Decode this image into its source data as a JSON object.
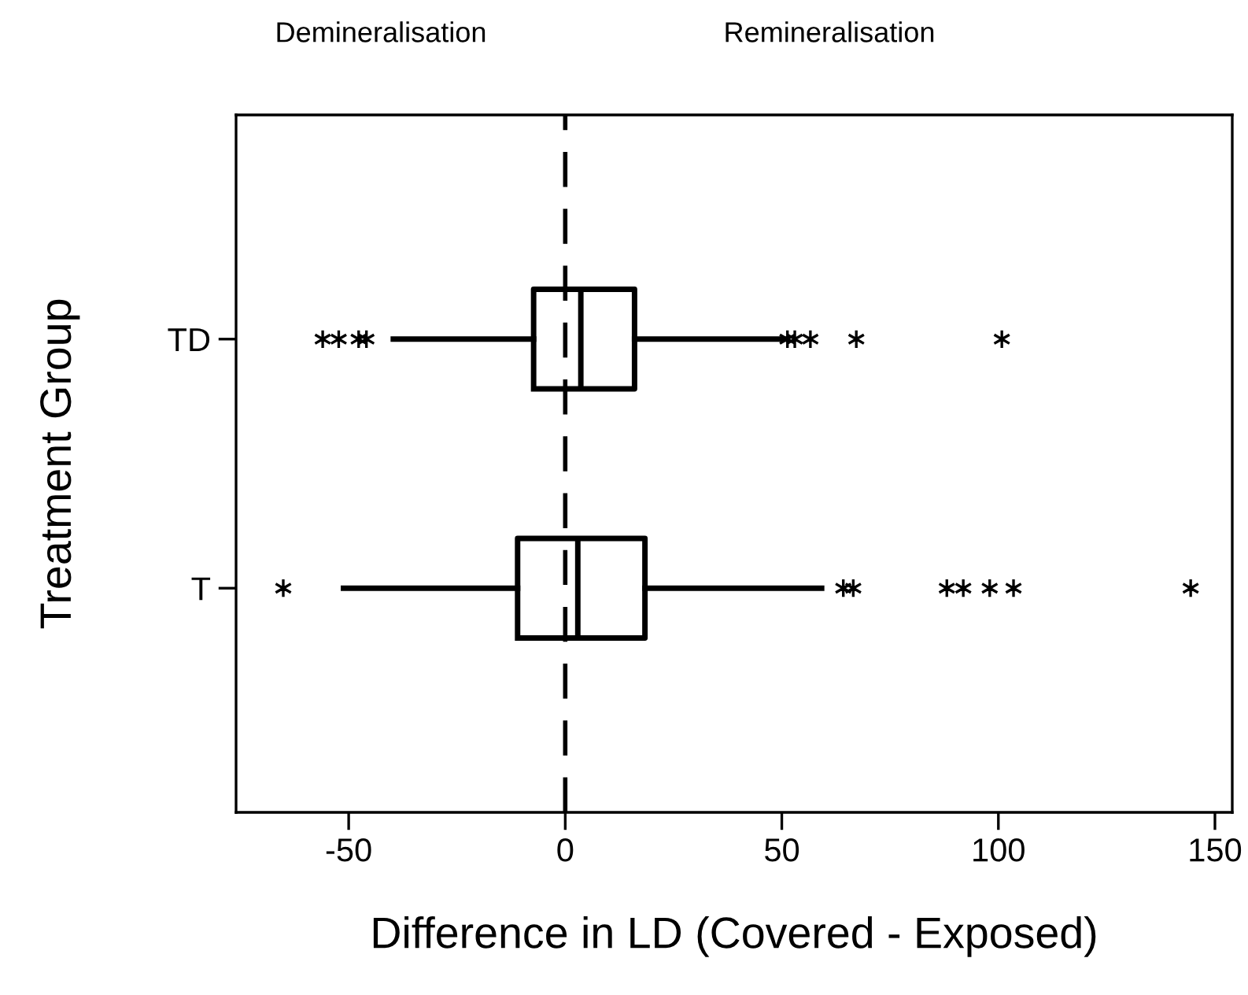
{
  "chart_data": {
    "type": "box",
    "orientation": "horizontal",
    "categories": [
      "TD",
      "T"
    ],
    "boxes": [
      {
        "low": -39.7,
        "q1": -7.3,
        "median": 3.6,
        "q3": 16.0,
        "high": 50.5,
        "outliers": [
          -56,
          -52.3,
          -47.7,
          -45.9,
          51.3,
          53,
          56.6,
          67.2,
          100.8
        ]
      },
      {
        "low": -51.2,
        "q1": -11,
        "median": 2.9,
        "q3": 18.4,
        "high": 59.2,
        "outliers": [
          -65.1,
          64.2,
          66.5,
          88.1,
          91.9,
          98,
          103.5,
          144.4
        ]
      }
    ],
    "xlim": [
      -76,
      154
    ],
    "xticks": [
      -50,
      0,
      50,
      100,
      150
    ],
    "xlabel": "Difference in LD (Covered - Exposed)",
    "ylabel": "Treatment Group",
    "ref_lines": [
      {
        "axis": "x",
        "value": 0,
        "line_style": "dashed",
        "color": "#000000"
      }
    ],
    "annotations": [
      "Demineralisation",
      "Remineralisation"
    ],
    "marker": "star",
    "grid": false,
    "legend": false
  }
}
